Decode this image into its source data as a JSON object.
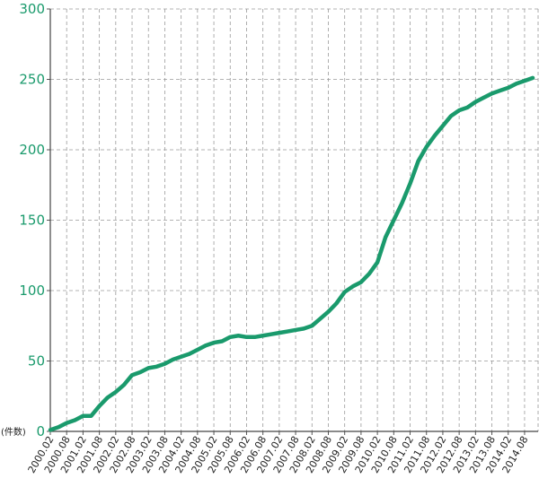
{
  "chart_data": {
    "type": "line",
    "ylabel": "(件数)",
    "ylim": [
      0,
      300
    ],
    "y_ticks": [
      "0",
      "50",
      "100",
      "150",
      "200",
      "250",
      "300"
    ],
    "x_tick_labels": [
      "2000.02",
      "2000.08",
      "2001.02",
      "2001.08",
      "2002.02",
      "2002.08",
      "2003.02",
      "2003.08",
      "2004.02",
      "2004.08",
      "2005.02",
      "2005.08",
      "2006.02",
      "2006.08",
      "2007.02",
      "2007.08",
      "2008.02",
      "2008.08",
      "2009.02",
      "2009.08",
      "2010.02",
      "2010.08",
      "2011.02",
      "2011.08",
      "2012.02",
      "2012.08",
      "2013.02",
      "2013.08",
      "2014.02",
      "2014.08"
    ],
    "grid": true,
    "line_color": "#1a9a6c",
    "series": [
      {
        "points": [
          [
            "2000.02",
            1
          ],
          [
            "2000.05",
            3
          ],
          [
            "2000.08",
            6
          ],
          [
            "2000.11",
            8
          ],
          [
            "2001.02",
            11
          ],
          [
            "2001.05",
            11
          ],
          [
            "2001.08",
            18
          ],
          [
            "2001.11",
            24
          ],
          [
            "2002.02",
            28
          ],
          [
            "2002.05",
            33
          ],
          [
            "2002.08",
            40
          ],
          [
            "2002.11",
            42
          ],
          [
            "2003.02",
            45
          ],
          [
            "2003.05",
            46
          ],
          [
            "2003.08",
            48
          ],
          [
            "2003.11",
            51
          ],
          [
            "2004.02",
            53
          ],
          [
            "2004.05",
            55
          ],
          [
            "2004.08",
            58
          ],
          [
            "2004.11",
            61
          ],
          [
            "2005.02",
            63
          ],
          [
            "2005.05",
            64
          ],
          [
            "2005.08",
            67
          ],
          [
            "2005.11",
            68
          ],
          [
            "2006.02",
            67
          ],
          [
            "2006.05",
            67
          ],
          [
            "2006.08",
            68
          ],
          [
            "2006.11",
            69
          ],
          [
            "2007.02",
            70
          ],
          [
            "2007.05",
            71
          ],
          [
            "2007.08",
            72
          ],
          [
            "2007.11",
            73
          ],
          [
            "2008.02",
            75
          ],
          [
            "2008.05",
            80
          ],
          [
            "2008.08",
            85
          ],
          [
            "2008.11",
            91
          ],
          [
            "2009.02",
            99
          ],
          [
            "2009.05",
            103
          ],
          [
            "2009.08",
            106
          ],
          [
            "2009.11",
            112
          ],
          [
            "2010.02",
            120
          ],
          [
            "2010.05",
            138
          ],
          [
            "2010.08",
            150
          ],
          [
            "2010.11",
            162
          ],
          [
            "2011.02",
            176
          ],
          [
            "2011.05",
            192
          ],
          [
            "2011.08",
            202
          ],
          [
            "2011.11",
            210
          ],
          [
            "2012.02",
            217
          ],
          [
            "2012.05",
            224
          ],
          [
            "2012.08",
            228
          ],
          [
            "2012.11",
            230
          ],
          [
            "2013.02",
            234
          ],
          [
            "2013.05",
            237
          ],
          [
            "2013.08",
            240
          ],
          [
            "2013.11",
            242
          ],
          [
            "2014.02",
            244
          ],
          [
            "2014.05",
            247
          ],
          [
            "2014.08",
            249
          ],
          [
            "2014.11",
            251
          ]
        ]
      }
    ]
  }
}
